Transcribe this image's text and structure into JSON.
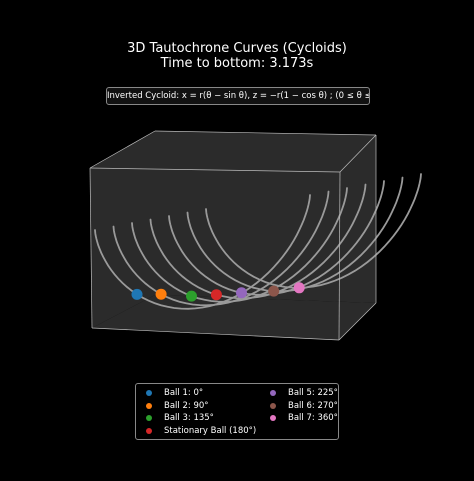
{
  "title": "3D Tautochrone Curves (Cycloids)",
  "subtitle": "Time to bottom: 3.173s",
  "formula": "Inverted Cycloid: x = r(θ − sin θ), z = −r(1 − cos θ) ; (0 ≤ θ ≤ 2π)",
  "chart_data": {
    "type": "line",
    "projection": "3d",
    "grid": false,
    "axes_visible": false,
    "pane_color": "#2b2b2b",
    "curve_color": "#9a9a9a",
    "parameter_range": [
      0,
      6.2832
    ],
    "series": [
      {
        "name": "Ball 1: 0°",
        "color": "#1f77b4",
        "start_angle_deg": 0
      },
      {
        "name": "Ball 2: 90°",
        "color": "#ff7f0e",
        "start_angle_deg": 90
      },
      {
        "name": "Ball 3: 135°",
        "color": "#2ca02c",
        "start_angle_deg": 135
      },
      {
        "name": "Stationary Ball (180°)",
        "color": "#d62728",
        "start_angle_deg": 180
      },
      {
        "name": "Ball 5: 225°",
        "color": "#9467bd",
        "start_angle_deg": 225
      },
      {
        "name": "Ball 6: 270°",
        "color": "#8c564b",
        "start_angle_deg": 270
      },
      {
        "name": "Ball 7: 360°",
        "color": "#e377c2",
        "start_angle_deg": 360
      }
    ],
    "legend": {
      "location": "lower-center",
      "columns": 2
    }
  }
}
